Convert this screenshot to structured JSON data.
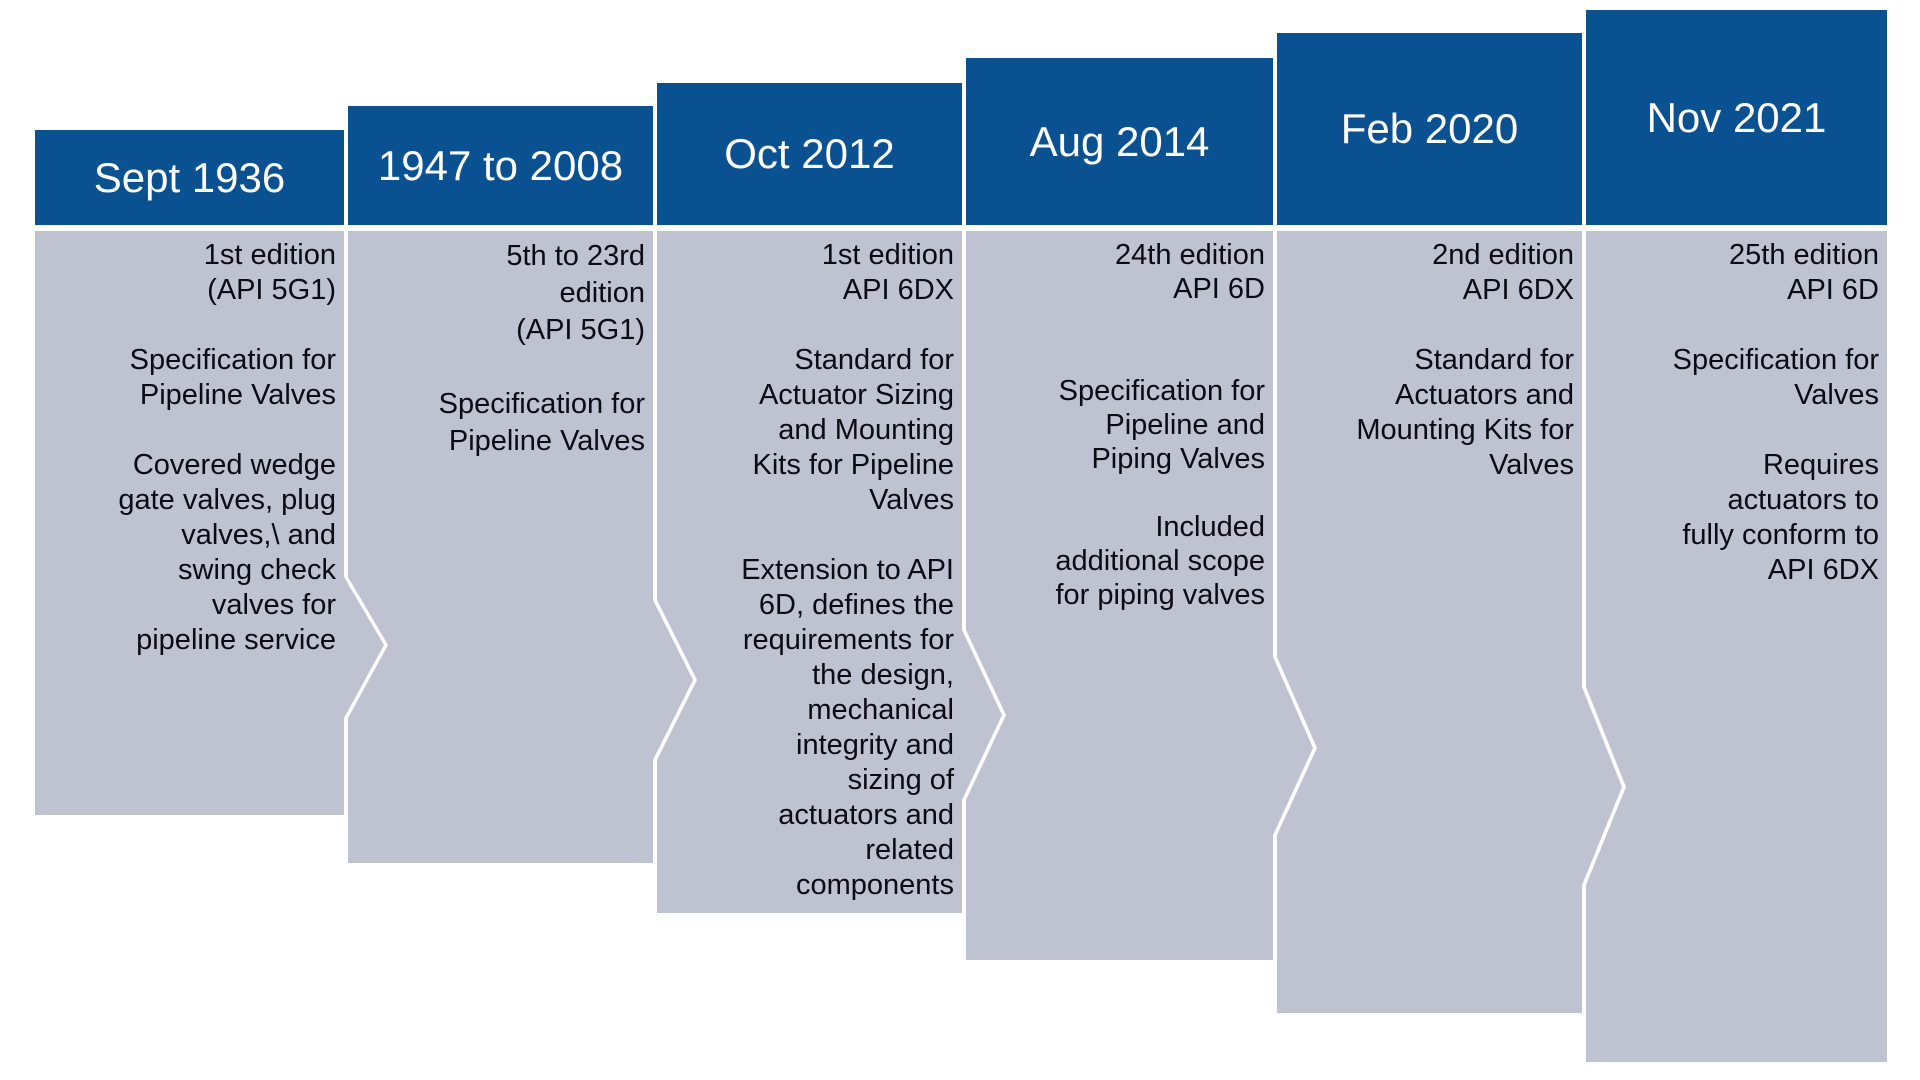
{
  "colors": {
    "header_fill": "#0A5191",
    "body_fill": "#BEC2D1",
    "header_text": "#FFFFFF",
    "body_text": "#0B0B15",
    "background": "#FFFFFF"
  },
  "columns": [
    {
      "date": "Sept 1936",
      "lines": [
        "1st edition",
        "(API 5G1)",
        "",
        "Specification for",
        "Pipeline Valves",
        "",
        "Covered wedge",
        "gate valves, plug",
        "valves,\\ and",
        "swing check",
        "valves for",
        "pipeline service"
      ]
    },
    {
      "date": "1947 to 2008",
      "lines": [
        "5th to 23rd",
        "edition",
        "(API 5G1)",
        "",
        "Specification for",
        "Pipeline Valves"
      ]
    },
    {
      "date": "Oct 2012",
      "lines": [
        "1st edition",
        "API 6DX",
        "",
        "Standard for",
        "Actuator Sizing",
        "and Mounting",
        "Kits for Pipeline",
        "Valves",
        "",
        "Extension to API",
        "6D, defines the",
        "requirements for",
        "the design,",
        "mechanical",
        "integrity and",
        "sizing of",
        "actuators and",
        "related",
        "components"
      ]
    },
    {
      "date": "Aug 2014",
      "lines": [
        "24th edition",
        "API 6D",
        "",
        "",
        "Specification for",
        "Pipeline and",
        "Piping Valves",
        "",
        "Included",
        "additional scope",
        "for piping valves"
      ]
    },
    {
      "date": "Feb 2020",
      "lines": [
        "2nd edition",
        "API 6DX",
        "",
        "Standard for",
        "Actuators and",
        "Mounting Kits for",
        "Valves"
      ]
    },
    {
      "date": "Nov 2021",
      "lines": [
        "25th edition",
        "API 6D",
        "",
        "Specification for",
        "Valves",
        "",
        "Requires",
        "actuators to",
        "fully conform to",
        "API 6DX"
      ]
    }
  ]
}
